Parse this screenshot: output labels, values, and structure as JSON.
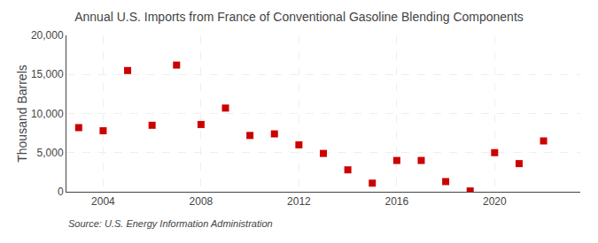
{
  "chart_data": {
    "type": "scatter",
    "title": "Annual U.S. Imports from France of Conventional Gasoline Blending Components",
    "ylabel": "Thousand Barrels",
    "annotations": [
      "Source: U.S. Energy Information Administration"
    ],
    "x": [
      2003,
      2004,
      2005,
      2006,
      2007,
      2008,
      2009,
      2010,
      2011,
      2012,
      2013,
      2014,
      2015,
      2016,
      2017,
      2018,
      2019,
      2020,
      2021,
      2022
    ],
    "values": [
      8200,
      7800,
      15500,
      8500,
      16200,
      8600,
      10700,
      7200,
      7400,
      6000,
      4900,
      2800,
      1100,
      4000,
      4000,
      1300,
      100,
      5000,
      3600,
      6500
    ],
    "color": "#cc0000",
    "marker": "square",
    "xlim": [
      2002.5,
      2023.5
    ],
    "xticks": [
      2004,
      2008,
      2012,
      2016,
      2020
    ],
    "ylim": [
      0,
      20000
    ],
    "yticks": [
      0,
      {
        "value": 5000,
        "label": "5,000"
      },
      {
        "value": 10000,
        "label": "10,000"
      },
      {
        "value": 15000,
        "label": "15,000"
      },
      {
        "value": 20000,
        "label": "20,000"
      }
    ],
    "grid": true
  }
}
